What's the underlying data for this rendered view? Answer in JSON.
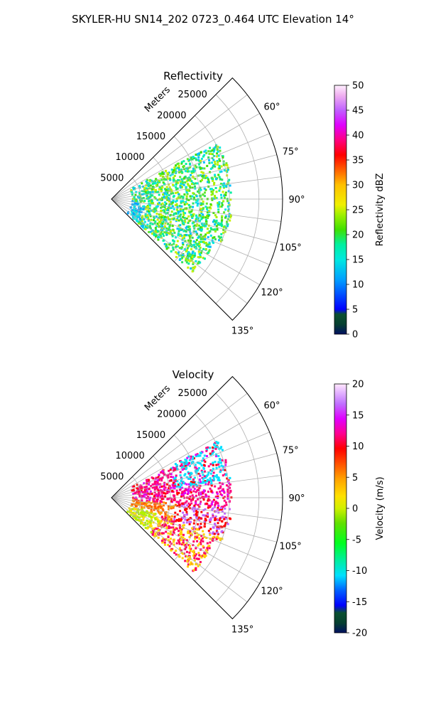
{
  "suptitle": "SKYLER-HU  SN14_202  0723_0.464 UTC Elevation 14°",
  "chart_data": [
    {
      "type": "polar-sector",
      "title": "Reflectivity",
      "radial_label": "Meters",
      "radial_ticks": [
        "5000",
        "10000",
        "15000",
        "20000",
        "25000"
      ],
      "radial_tick_values": [
        5000,
        10000,
        15000,
        20000,
        25000
      ],
      "rlim": [
        0,
        29000
      ],
      "angle_ticks": [
        "60°",
        "75°",
        "90°",
        "105°",
        "120°",
        "135°"
      ],
      "angle_tick_values": [
        60,
        75,
        90,
        105,
        120,
        135
      ],
      "theta_range": [
        45,
        135
      ],
      "grid": true,
      "colorbar": {
        "label": "Reflectivity dBZ",
        "ticks": [
          "0",
          "5",
          "10",
          "15",
          "20",
          "25",
          "30",
          "35",
          "40",
          "45",
          "50"
        ],
        "range": [
          0,
          50
        ]
      }
    },
    {
      "type": "polar-sector",
      "title": "Velocity",
      "radial_label": "Meters",
      "radial_ticks": [
        "5000",
        "10000",
        "15000",
        "20000",
        "25000"
      ],
      "radial_tick_values": [
        5000,
        10000,
        15000,
        20000,
        25000
      ],
      "rlim": [
        0,
        29000
      ],
      "angle_ticks": [
        "60°",
        "75°",
        "90°",
        "105°",
        "120°",
        "135°"
      ],
      "angle_tick_values": [
        60,
        75,
        90,
        105,
        120,
        135
      ],
      "theta_range": [
        45,
        135
      ],
      "grid": true,
      "colorbar": {
        "label": "Velocity (m/s)",
        "ticks": [
          "20",
          "15",
          "10",
          "5",
          "0",
          "-5",
          "-10",
          "-15",
          "-20"
        ],
        "range": [
          -20,
          20
        ]
      }
    }
  ]
}
